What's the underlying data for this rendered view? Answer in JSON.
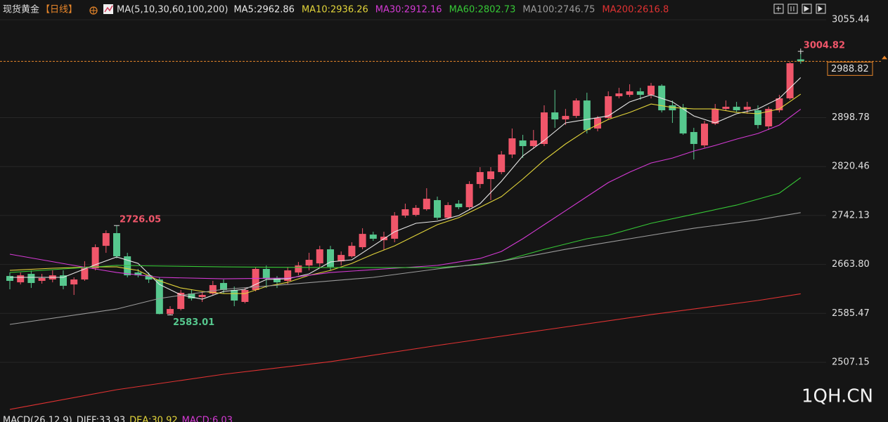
{
  "chart_data": {
    "type": "candlestick",
    "title": "现货黄金",
    "period": "【日线】",
    "indicator": "MA(5,10,30,60,100,200)",
    "up_color": "#f0566a",
    "down_color": "#56c88e",
    "open": [
      2645.3,
      2635.2,
      2648.7,
      2637.5,
      2639.7,
      2646.4,
      2631.8,
      2639.7,
      2657.7,
      2693.6,
      2713.9,
      2676.8,
      2650.9,
      2646.4,
      2639.7,
      2584.5,
      2592.5,
      2617.2,
      2611.6,
      2617.2,
      2634.1,
      2622.9,
      2603.8,
      2622.9,
      2656.6,
      2642.0,
      2637.5,
      2650.9,
      2662.2,
      2665.5,
      2688.0,
      2668.9,
      2676.8,
      2691.4,
      2711.6,
      2702.6,
      2704.9,
      2742.0,
      2743.1,
      2752.1,
      2766.7,
      2738.6,
      2761.1,
      2755.4,
      2792.5,
      2800.4,
      2811.6,
      2839.7,
      2862.2,
      2853.2,
      2856.6,
      2907.1,
      2895.9,
      2901.5,
      2926.2,
      2881.3,
      2898.1,
      2933.0,
      2935.2,
      2940.8,
      2935.2,
      2949.8,
      2918.4,
      2915.0,
      2875.7,
      2854.3,
      2889.1,
      2912.7,
      2916.1,
      2911.6,
      2910.5,
      2884.7,
      2910.5,
      2929.6,
      2992.0
    ],
    "high": [
      2650.9,
      2650.9,
      2654.3,
      2648.7,
      2654.3,
      2654.3,
      2643.1,
      2668.9,
      2695.9,
      2718.4,
      2726.05,
      2682.4,
      2656.6,
      2650.9,
      2643.1,
      2597.0,
      2622.9,
      2624.0,
      2620.6,
      2637.5,
      2639.7,
      2628.5,
      2626.2,
      2659.9,
      2662.2,
      2645.3,
      2659.9,
      2667.8,
      2682.4,
      2693.6,
      2693.6,
      2684.6,
      2699.3,
      2721.7,
      2716.1,
      2716.1,
      2747.6,
      2761.1,
      2758.8,
      2785.8,
      2772.3,
      2763.3,
      2766.7,
      2797.0,
      2819.5,
      2819.5,
      2845.3,
      2881.3,
      2871.2,
      2879.0,
      2918.4,
      2943.1,
      2912.7,
      2929.6,
      2938.6,
      2901.5,
      2940.8,
      2946.4,
      2952.1,
      2946.4,
      2954.3,
      2952.1,
      2926.2,
      2920.6,
      2882.4,
      2893.6,
      2920.6,
      2926.2,
      2924.0,
      2924.0,
      2918.4,
      2916.1,
      2935.2,
      2988.0,
      3004.82
    ],
    "low": [
      2624.0,
      2631.8,
      2626.2,
      2633.0,
      2635.2,
      2624.0,
      2615.0,
      2637.5,
      2654.3,
      2682.4,
      2673.4,
      2643.1,
      2643.1,
      2634.1,
      2584.0,
      2583.01,
      2590.3,
      2606.0,
      2603.8,
      2615.0,
      2617.2,
      2597.0,
      2601.5,
      2620.6,
      2626.2,
      2626.2,
      2631.8,
      2646.4,
      2654.3,
      2659.9,
      2654.3,
      2662.2,
      2674.5,
      2688.0,
      2701.5,
      2686.9,
      2699.3,
      2738.6,
      2740.8,
      2749.8,
      2735.2,
      2736.3,
      2752.1,
      2752.1,
      2785.8,
      2766.7,
      2808.2,
      2834.1,
      2834.1,
      2848.7,
      2853.2,
      2882.4,
      2886.9,
      2898.1,
      2873.4,
      2876.8,
      2895.9,
      2929.6,
      2931.8,
      2927.3,
      2929.6,
      2907.1,
      2890.3,
      2871.2,
      2831.8,
      2850.9,
      2886.9,
      2909.4,
      2907.1,
      2904.9,
      2881.3,
      2879.0,
      2907.1,
      2927.3,
      2985.0
    ],
    "close": [
      2637.5,
      2646.4,
      2634.1,
      2642.0,
      2646.4,
      2629.6,
      2639.7,
      2657.7,
      2691.4,
      2713.9,
      2676.8,
      2646.4,
      2646.4,
      2639.7,
      2584.5,
      2592.5,
      2618.4,
      2609.4,
      2615.0,
      2630.7,
      2622.9,
      2606.0,
      2622.9,
      2656.6,
      2640.8,
      2635.2,
      2654.3,
      2662.2,
      2671.2,
      2688.0,
      2659.9,
      2679.0,
      2693.6,
      2712.7,
      2704.9,
      2708.2,
      2742.0,
      2752.1,
      2754.3,
      2768.9,
      2738.6,
      2758.8,
      2755.4,
      2792.5,
      2811.6,
      2812.7,
      2839.7,
      2865.6,
      2853.2,
      2862.2,
      2907.1,
      2895.9,
      2901.5,
      2926.2,
      2879.0,
      2898.1,
      2933.0,
      2937.5,
      2940.8,
      2935.2,
      2949.8,
      2910.5,
      2910.5,
      2873.4,
      2856.6,
      2889.1,
      2912.7,
      2916.1,
      2910.5,
      2916.1,
      2886.9,
      2912.7,
      2929.6,
      2985.8,
      2988.82
    ],
    "series": [
      {
        "label": "MA5:2962.86",
        "color": "#e8e8e8",
        "x": [
          0,
          5,
          8,
          10,
          12,
          14,
          16,
          18,
          20,
          22,
          24,
          26,
          28,
          30,
          32,
          34,
          36,
          38,
          40,
          42,
          44,
          46,
          48,
          50,
          52,
          54,
          56,
          58,
          60,
          62,
          64,
          66,
          68,
          70,
          72,
          74
        ],
        "values": [
          2643.1,
          2643.1,
          2663.3,
          2675.7,
          2665.5,
          2631.8,
          2615.0,
          2608.3,
          2620.6,
          2624.0,
          2639.7,
          2640.8,
          2648.7,
          2667.8,
          2671.2,
          2693.6,
          2716.1,
          2729.6,
          2733.0,
          2742.0,
          2761.1,
          2797.0,
          2837.5,
          2862.2,
          2890.3,
          2895.9,
          2901.5,
          2924.0,
          2935.2,
          2924.0,
          2901.5,
          2890.3,
          2905.0,
          2912.7,
          2929.6,
          2962.86
        ]
      },
      {
        "label": "MA10:2936.26",
        "color": "#e2d43a",
        "x": [
          0,
          4,
          8,
          10,
          12,
          14,
          16,
          18,
          20,
          22,
          24,
          26,
          28,
          30,
          32,
          34,
          36,
          38,
          40,
          42,
          44,
          46,
          48,
          50,
          52,
          54,
          56,
          58,
          60,
          62,
          64,
          66,
          68,
          70,
          72,
          74
        ],
        "values": [
          2654.3,
          2657.7,
          2659.9,
          2659.9,
          2654.3,
          2637.5,
          2626.2,
          2620.6,
          2617.2,
          2617.2,
          2628.5,
          2635.2,
          2646.4,
          2654.3,
          2665.5,
          2680.2,
          2693.6,
          2710.5,
          2727.4,
          2738.6,
          2755.4,
          2772.3,
          2800.4,
          2830.7,
          2856.6,
          2879.0,
          2895.9,
          2907.1,
          2920.6,
          2915.0,
          2912.7,
          2912.7,
          2907.1,
          2904.9,
          2912.7,
          2936.26
        ]
      },
      {
        "label": "MA30:2912.16",
        "color": "#d43ad4",
        "x": [
          0,
          6,
          10,
          14,
          20,
          26,
          30,
          36,
          40,
          44,
          46,
          48,
          50,
          52,
          54,
          56,
          58,
          60,
          62,
          64,
          66,
          68,
          70,
          72,
          74
        ],
        "values": [
          2680.2,
          2662.2,
          2650.9,
          2643.1,
          2640.8,
          2642.0,
          2650.9,
          2657.7,
          2662.2,
          2673.4,
          2684.6,
          2704.9,
          2727.4,
          2749.8,
          2772.3,
          2794.8,
          2811.6,
          2826.2,
          2834.1,
          2845.3,
          2854.3,
          2864.4,
          2873.4,
          2886.9,
          2912.16
        ]
      },
      {
        "label": "MA60:2802.73",
        "color": "#36c836",
        "x": [
          0,
          5,
          10,
          20,
          30,
          40,
          44,
          46,
          50,
          54,
          56,
          60,
          64,
          68,
          72,
          74
        ],
        "values": [
          2650.9,
          2656.6,
          2662.2,
          2659.9,
          2658.8,
          2658.8,
          2663.3,
          2668.9,
          2688.0,
          2704.9,
          2710.5,
          2729.6,
          2744.2,
          2758.8,
          2777.9,
          2802.73
        ]
      },
      {
        "label": "MA100:2746.75",
        "color": "#9a9a9a",
        "x": [
          0,
          10,
          14,
          20,
          26,
          34,
          40,
          46,
          52,
          58,
          64,
          70,
          74
        ],
        "values": [
          2567.8,
          2592.5,
          2609.4,
          2624.0,
          2631.8,
          2643.1,
          2656.6,
          2668.9,
          2688.0,
          2704.9,
          2721.7,
          2735.2,
          2746.75
        ]
      },
      {
        "label": "MA200:2616.8",
        "color": "#e03232",
        "x": [
          0,
          10,
          20,
          30,
          40,
          50,
          60,
          70,
          74
        ],
        "values": [
          2431.8,
          2463.3,
          2488.0,
          2508.2,
          2534.1,
          2558.8,
          2583.5,
          2606.0,
          2616.8
        ]
      }
    ],
    "ylim": [
      2424,
      3087
    ],
    "yticks": [
      2507.15,
      2585.47,
      {
        "value": 2663.8,
        "label": "2663.80"
      },
      2742.13,
      2820.46,
      2898.78,
      3055.44
    ],
    "grid": true,
    "price_line_color": "#e8862a",
    "macd_legend": [
      {
        "label": "MACD(26,12,9)",
        "color": "#e0e0e0"
      },
      {
        "label": "DIFF:33.93",
        "color": "#e0e0e0"
      },
      {
        "label": "DEA:30.92",
        "color": "#e2d43a"
      },
      {
        "label": "MACD:6.03",
        "color": "#d43ad4"
      }
    ],
    "watermark": "1QH.CN"
  }
}
